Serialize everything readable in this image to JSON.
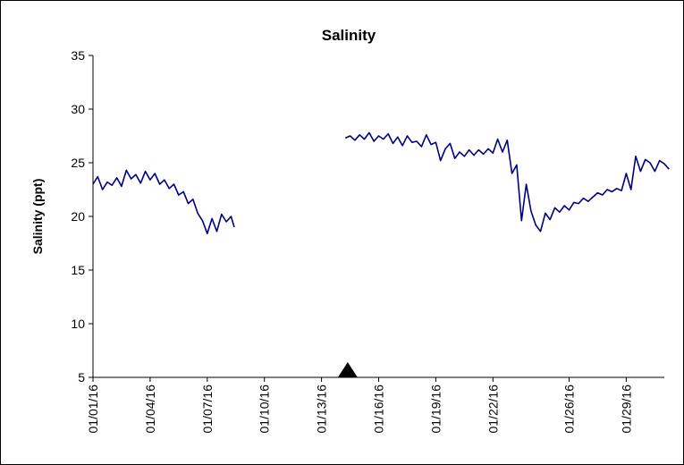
{
  "chart_data": {
    "type": "line",
    "title": "Salinity",
    "xlabel": "",
    "ylabel": "Salinity (ppt)",
    "ylim": [
      5,
      35
    ],
    "yticks": [
      5,
      10,
      15,
      20,
      25,
      30,
      35
    ],
    "xlim": [
      "2016-01-01",
      "2016-01-31"
    ],
    "xtick_labels": [
      "01/01/16",
      "01/04/16",
      "01/07/16",
      "01/10/16",
      "01/13/16",
      "01/16/16",
      "01/19/16",
      "01/22/16",
      "01/26/16",
      "01/29/16"
    ],
    "xtick_dates": [
      "2016-01-01",
      "2016-01-04",
      "2016-01-07",
      "2016-01-10",
      "2016-01-13",
      "2016-01-16",
      "2016-01-19",
      "2016-01-22",
      "2016-01-26",
      "2016-01-29"
    ],
    "grid": false,
    "line_color": "#000080",
    "marker": {
      "shape": "triangle",
      "x": "2016-01-14 09:00",
      "y": 5,
      "color": "#000000"
    },
    "series": [
      {
        "segments": [
          {
            "x": [
              "2016-01-01 00:00",
              "2016-01-01 06:00",
              "2016-01-01 12:00",
              "2016-01-01 18:00",
              "2016-01-02 00:00",
              "2016-01-02 06:00",
              "2016-01-02 12:00",
              "2016-01-02 18:00",
              "2016-01-03 00:00",
              "2016-01-03 06:00",
              "2016-01-03 12:00",
              "2016-01-03 18:00",
              "2016-01-04 00:00",
              "2016-01-04 06:00",
              "2016-01-04 12:00",
              "2016-01-04 18:00",
              "2016-01-05 00:00",
              "2016-01-05 06:00",
              "2016-01-05 12:00",
              "2016-01-05 18:00",
              "2016-01-06 00:00",
              "2016-01-06 06:00",
              "2016-01-06 12:00",
              "2016-01-06 18:00",
              "2016-01-07 00:00",
              "2016-01-07 06:00",
              "2016-01-07 12:00",
              "2016-01-07 18:00",
              "2016-01-08 00:00",
              "2016-01-08 06:00",
              "2016-01-08 10:00"
            ],
            "y": [
              23.0,
              23.7,
              22.5,
              23.2,
              22.9,
              23.6,
              22.8,
              24.3,
              23.5,
              23.9,
              23.1,
              24.2,
              23.4,
              24.0,
              23.0,
              23.4,
              22.6,
              23.0,
              22.0,
              22.3,
              21.2,
              21.6,
              20.3,
              19.6,
              18.4,
              19.8,
              18.6,
              20.2,
              19.5,
              20.0,
              19.0
            ]
          },
          {
            "x": [
              "2016-01-14 06:00",
              "2016-01-14 12:00",
              "2016-01-14 18:00",
              "2016-01-15 00:00",
              "2016-01-15 06:00",
              "2016-01-15 12:00",
              "2016-01-15 18:00",
              "2016-01-16 00:00",
              "2016-01-16 06:00",
              "2016-01-16 12:00",
              "2016-01-16 18:00",
              "2016-01-17 00:00",
              "2016-01-17 06:00",
              "2016-01-17 12:00",
              "2016-01-17 18:00",
              "2016-01-18 00:00",
              "2016-01-18 06:00",
              "2016-01-18 12:00",
              "2016-01-18 18:00",
              "2016-01-19 00:00",
              "2016-01-19 06:00",
              "2016-01-19 12:00",
              "2016-01-19 18:00",
              "2016-01-20 00:00",
              "2016-01-20 06:00",
              "2016-01-20 12:00",
              "2016-01-20 18:00",
              "2016-01-21 00:00",
              "2016-01-21 06:00",
              "2016-01-21 12:00",
              "2016-01-21 18:00",
              "2016-01-22 00:00",
              "2016-01-22 06:00",
              "2016-01-22 12:00",
              "2016-01-22 18:00",
              "2016-01-23 00:00",
              "2016-01-23 06:00",
              "2016-01-23 12:00",
              "2016-01-23 18:00",
              "2016-01-24 00:00",
              "2016-01-24 06:00",
              "2016-01-24 12:00",
              "2016-01-24 18:00",
              "2016-01-25 00:00",
              "2016-01-25 06:00",
              "2016-01-25 12:00",
              "2016-01-25 18:00",
              "2016-01-26 00:00",
              "2016-01-26 06:00",
              "2016-01-26 12:00",
              "2016-01-26 18:00",
              "2016-01-27 00:00",
              "2016-01-27 06:00",
              "2016-01-27 12:00",
              "2016-01-27 18:00",
              "2016-01-28 00:00",
              "2016-01-28 06:00",
              "2016-01-28 12:00",
              "2016-01-28 18:00",
              "2016-01-29 00:00",
              "2016-01-29 06:00",
              "2016-01-29 12:00",
              "2016-01-29 18:00",
              "2016-01-30 00:00",
              "2016-01-30 06:00",
              "2016-01-30 12:00",
              "2016-01-30 18:00",
              "2016-01-31 00:00",
              "2016-01-31 06:00"
            ],
            "y": [
              27.3,
              27.5,
              27.1,
              27.6,
              27.2,
              27.8,
              27.0,
              27.5,
              27.2,
              27.7,
              26.8,
              27.4,
              26.6,
              27.5,
              26.9,
              27.0,
              26.5,
              27.6,
              26.7,
              26.9,
              25.2,
              26.3,
              26.8,
              25.4,
              26.0,
              25.6,
              26.2,
              25.7,
              26.2,
              25.8,
              26.3,
              25.9,
              27.2,
              26.0,
              27.1,
              24.0,
              24.8,
              19.6,
              23.0,
              20.5,
              19.2,
              18.6,
              20.3,
              19.7,
              20.8,
              20.4,
              21.0,
              20.6,
              21.3,
              21.2,
              21.7,
              21.4,
              21.8,
              22.2,
              22.0,
              22.5,
              22.3,
              22.6,
              22.4,
              24.0,
              22.5,
              25.6,
              24.2,
              25.3,
              25.0,
              24.2,
              25.2,
              24.9,
              24.4
            ]
          }
        ]
      }
    ]
  }
}
